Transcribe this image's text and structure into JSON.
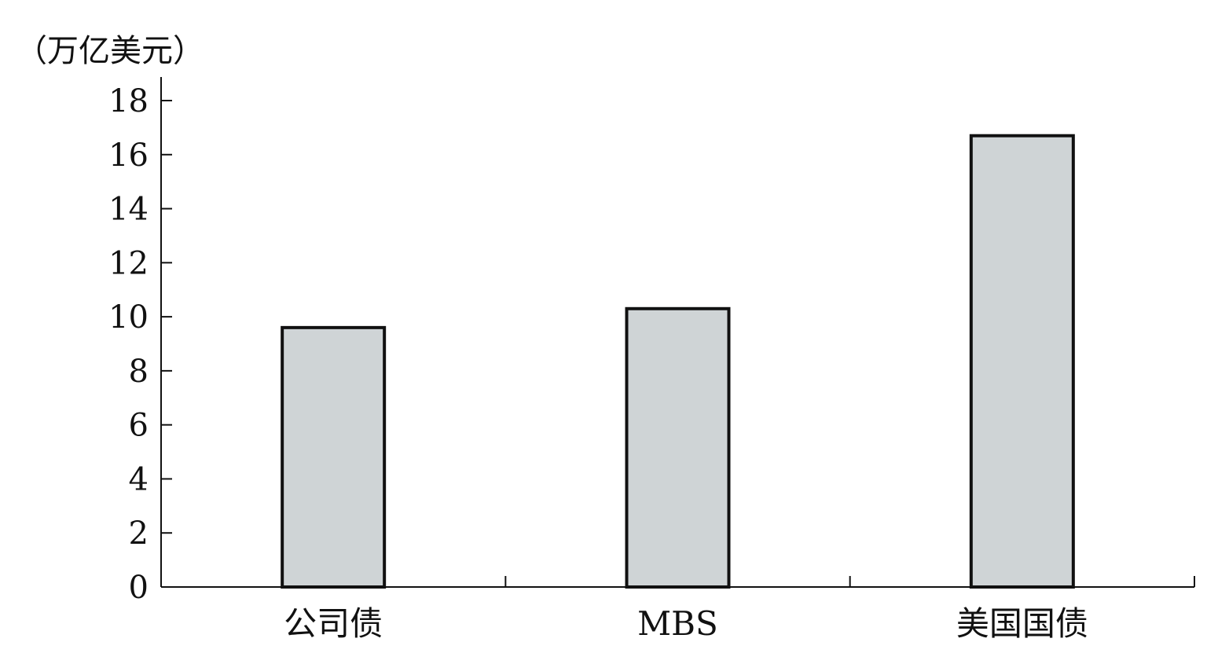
{
  "chart_data": {
    "type": "bar",
    "unit_label": "（万亿美元）",
    "categories": [
      "公司债",
      "MBS",
      "美国国债"
    ],
    "values": [
      9.6,
      10.3,
      16.7
    ],
    "ylim": [
      0,
      18
    ],
    "yticks": [
      0,
      2,
      4,
      6,
      8,
      10,
      12,
      14,
      16,
      18
    ],
    "grid": false,
    "legend": "none",
    "bar_color": "#cfd4d6",
    "outline_color": "#111111"
  }
}
